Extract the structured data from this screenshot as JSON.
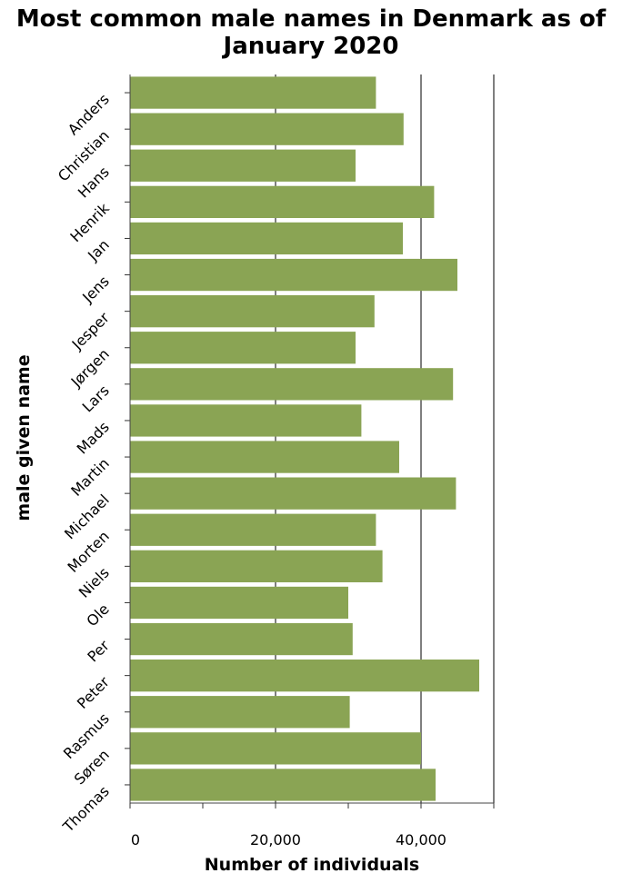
{
  "chart_data": {
    "type": "bar",
    "orientation": "horizontal",
    "title": "Most common male names in Denmark as of January 2020",
    "xlabel": "Number of individuals",
    "ylabel": "male given name",
    "categories": [
      "Anders",
      "Christian",
      "Hans",
      "Henrik",
      "Jan",
      "Jens",
      "Jesper",
      "Jørgen",
      "Lars",
      "Mads",
      "Martin",
      "Michael",
      "Morten",
      "Niels",
      "Ole",
      "Per",
      "Peter",
      "Rasmus",
      "Søren",
      "Thomas"
    ],
    "values": [
      33800,
      37600,
      31000,
      41800,
      37500,
      45000,
      33600,
      31000,
      44400,
      31800,
      37000,
      44800,
      33800,
      34700,
      30000,
      30600,
      48000,
      30200,
      40000,
      42000
    ],
    "xlim": [
      0,
      50000
    ],
    "xticks": [
      0,
      20000,
      40000
    ],
    "xtick_labels": [
      "0",
      "20,000",
      "40,000"
    ],
    "bar_color": "#8aa454",
    "grid": "x-major"
  }
}
